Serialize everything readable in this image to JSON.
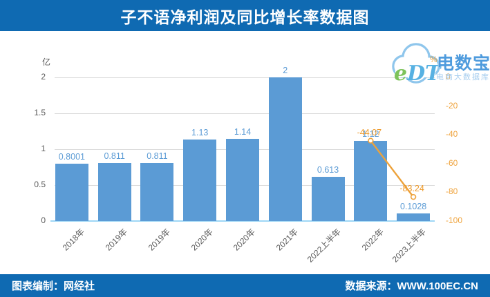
{
  "title_bar": {
    "title": "子不语净利润及同比增长率数据图"
  },
  "footer": {
    "left": "图表编制：网经社",
    "right": "数据来源：WWW.100EC.CN"
  },
  "watermark": {
    "logo": "eDT",
    "brand": "电数宝",
    "tagline": "电商大数据库"
  },
  "colors": {
    "banner_blue": "#0F6AB2",
    "bar_fill": "#5B9BD5",
    "bar_label": "#5B9BD5",
    "line_orange": "#EDA23B",
    "right_axis_text": "#EFA33C",
    "left_axis_text": "#595959",
    "gridline": "#DBDBDB",
    "baseline": "#9ED6F5"
  },
  "chart_data": {
    "type": "combo",
    "title": "子不语净利润及同比增长率数据图",
    "categories": [
      "2018年",
      "2019年",
      "2019年",
      "2020年",
      "2020年",
      "2021年",
      "2022上半年",
      "2022年",
      "2023上半年"
    ],
    "series": [
      {
        "type": "bar",
        "axis": "left",
        "unit": "亿",
        "color": "#5B9BD5",
        "values": [
          0.8001,
          0.811,
          0.811,
          1.13,
          1.14,
          2,
          0.613,
          1.12,
          0.1028
        ],
        "labels": [
          "0.8001",
          "0.811",
          "0.811",
          "1.13",
          "1.14",
          "2",
          "0.613",
          "1.12",
          "0.1028"
        ]
      },
      {
        "type": "line",
        "axis": "right",
        "unit": "%",
        "color": "#EDA23B",
        "values": [
          null,
          null,
          null,
          null,
          null,
          null,
          null,
          -44.07,
          -83.24
        ],
        "labels": [
          "",
          "",
          "",
          "",
          "",
          "",
          "",
          "-44.07",
          "-83.24"
        ]
      }
    ],
    "left_axis": {
      "unit": "亿",
      "ticks": [
        "2",
        "1.5",
        "1",
        "0.5",
        "0"
      ],
      "min": 0,
      "max": 2
    },
    "right_axis": {
      "unit": "%",
      "ticks": [
        "0",
        "-20",
        "-40",
        "-60",
        "-80",
        "-100"
      ],
      "min": -100,
      "max": 0
    },
    "grid": true,
    "legend": false
  }
}
